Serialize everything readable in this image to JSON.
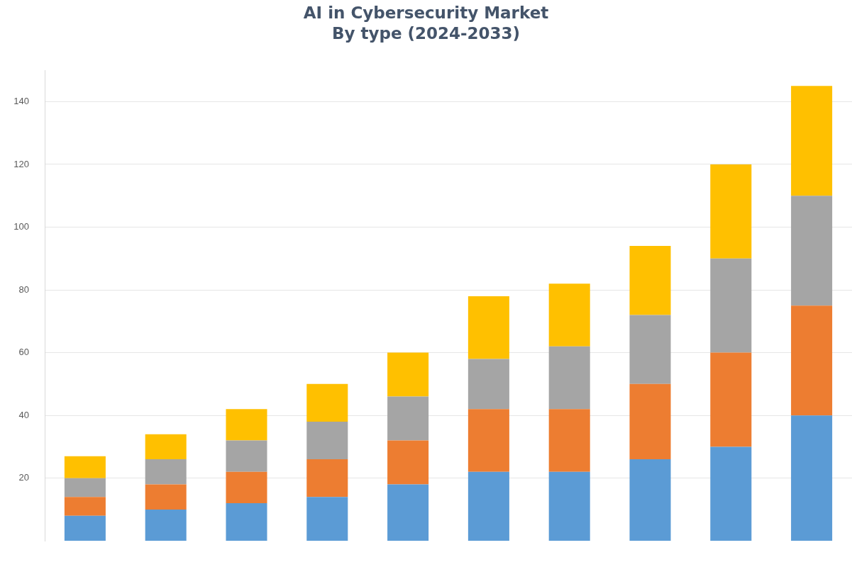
{
  "chart_data": {
    "type": "bar",
    "title": "AI in Cybersecurity Market",
    "subtitle": "By type (2024-2033)",
    "stacked": true,
    "categories": [
      null,
      null,
      null,
      null,
      null,
      null,
      null,
      null,
      null,
      null
    ],
    "series": [
      {
        "color": "#5b9bd5",
        "values": [
          8,
          10,
          12,
          14,
          18,
          22,
          22,
          26,
          30,
          40
        ]
      },
      {
        "color": "#ed7d31",
        "values": [
          6,
          8,
          10,
          12,
          14,
          20,
          20,
          24,
          30,
          35
        ]
      },
      {
        "color": "#a5a5a5",
        "values": [
          6,
          8,
          10,
          12,
          14,
          16,
          20,
          22,
          30,
          35
        ]
      },
      {
        "color": "#ffc000",
        "values": [
          7,
          8,
          10,
          12,
          14,
          20,
          20,
          22,
          30,
          35
        ]
      }
    ],
    "ylim": [
      0,
      150
    ],
    "yticks": [
      20,
      40,
      60,
      80,
      100,
      120,
      140
    ],
    "grid": "y",
    "legend": false,
    "tick_labels": "y"
  }
}
